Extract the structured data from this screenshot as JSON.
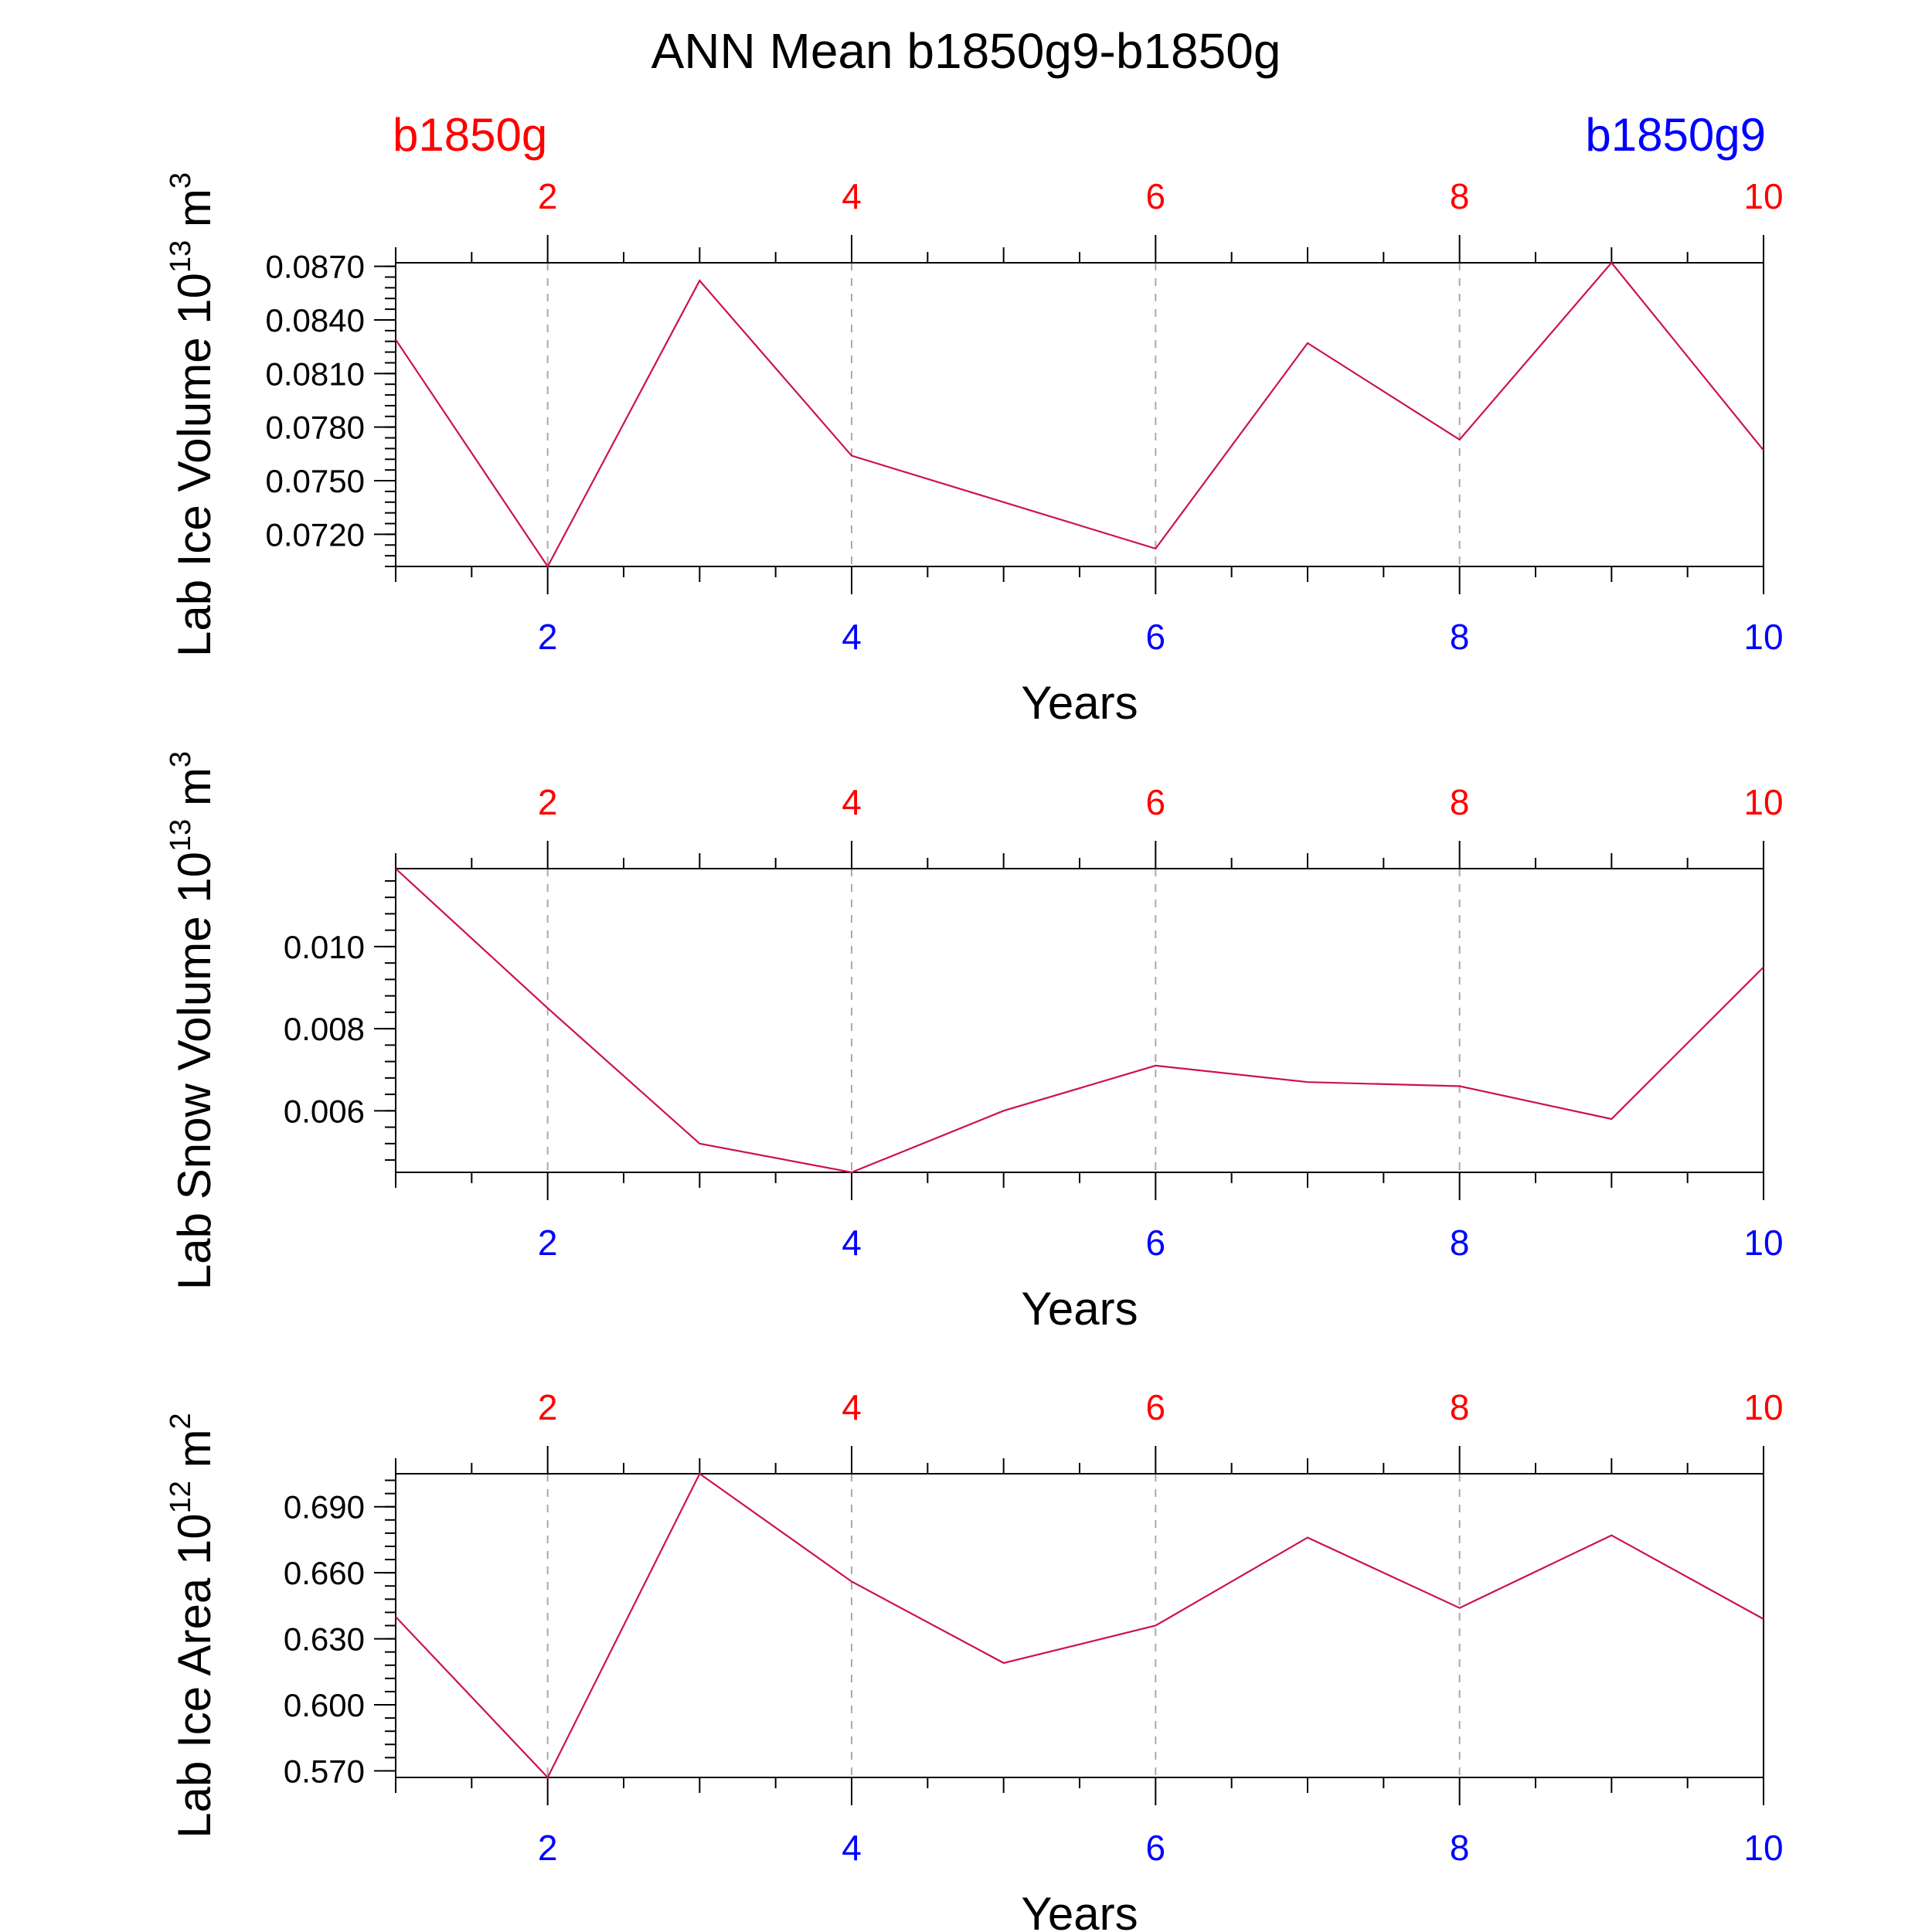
{
  "title": "ANN Mean b1850g9-b1850g",
  "legend": {
    "left_label": "b1850g",
    "right_label": "b1850g9",
    "left_color": "#ff0000",
    "right_color": "#0000ff"
  },
  "colors": {
    "line": "#cc1155",
    "top_ticks": "#ff0000",
    "bottom_ticks": "#0000ff",
    "frame": "#000000",
    "grid": "#aaaaaa"
  },
  "chart_data": [
    {
      "type": "line",
      "ylabel": "Lab Ice Volume 10",
      "ylabel_exp": "13",
      "ylabel_unit": " m",
      "ylabel_unit_exp": "3",
      "xlabel": "Years",
      "xlim": [
        1,
        10
      ],
      "ylim": [
        0.0702,
        0.0872
      ],
      "yticks": [
        0.072,
        0.075,
        0.078,
        0.081,
        0.084,
        0.087
      ],
      "ytick_labels": [
        "0.0720",
        "0.0750",
        "0.0780",
        "0.0810",
        "0.0840",
        "0.0870"
      ],
      "yminor_step": 0.0006,
      "xticks": [
        2,
        4,
        6,
        8,
        10
      ],
      "xtick_labels": [
        "2",
        "4",
        "6",
        "8",
        "10"
      ],
      "grid": "vertical dashed",
      "series": [
        {
          "name": "b1850g9-b1850g",
          "x": [
            1,
            2,
            3,
            4,
            5,
            6,
            7,
            8,
            9,
            10
          ],
          "values": [
            0.0829,
            0.0702,
            0.0862,
            0.0764,
            0.0738,
            0.0712,
            0.0827,
            0.0773,
            0.0872,
            0.0767
          ]
        }
      ]
    },
    {
      "type": "line",
      "ylabel": "Lab Snow Volume 10",
      "ylabel_exp": "13",
      "ylabel_unit": " m",
      "ylabel_unit_exp": "3",
      "xlabel": "Years",
      "xlim": [
        1,
        10
      ],
      "ylim": [
        0.0045,
        0.0119
      ],
      "yticks": [
        0.006,
        0.008,
        0.01
      ],
      "ytick_labels": [
        "0.006",
        "0.008",
        "0.010"
      ],
      "yminor_step": 0.0004,
      "xticks": [
        2,
        4,
        6,
        8,
        10
      ],
      "xtick_labels": [
        "2",
        "4",
        "6",
        "8",
        "10"
      ],
      "grid": "vertical dashed",
      "series": [
        {
          "name": "b1850g9-b1850g",
          "x": [
            1,
            2,
            3,
            4,
            5,
            6,
            7,
            8,
            9,
            10
          ],
          "values": [
            0.0119,
            0.0085,
            0.0052,
            0.0045,
            0.006,
            0.0071,
            0.0067,
            0.0066,
            0.0058,
            0.0095
          ]
        }
      ]
    },
    {
      "type": "line",
      "ylabel": "Lab Ice Area 10",
      "ylabel_exp": "12",
      "ylabel_unit": " m",
      "ylabel_unit_exp": "2",
      "xlabel": "Years",
      "xlim": [
        1,
        10
      ],
      "ylim": [
        0.567,
        0.705
      ],
      "yticks": [
        0.57,
        0.6,
        0.63,
        0.66,
        0.69
      ],
      "ytick_labels": [
        "0.570",
        "0.600",
        "0.630",
        "0.660",
        "0.690"
      ],
      "yminor_step": 0.006,
      "xticks": [
        2,
        4,
        6,
        8,
        10
      ],
      "xtick_labels": [
        "2",
        "4",
        "6",
        "8",
        "10"
      ],
      "grid": "vertical dashed",
      "series": [
        {
          "name": "b1850g9-b1850g",
          "x": [
            1,
            2,
            3,
            4,
            5,
            6,
            7,
            8,
            9,
            10
          ],
          "values": [
            0.64,
            0.567,
            0.705,
            0.656,
            0.619,
            0.636,
            0.676,
            0.644,
            0.677,
            0.639
          ]
        }
      ]
    }
  ]
}
